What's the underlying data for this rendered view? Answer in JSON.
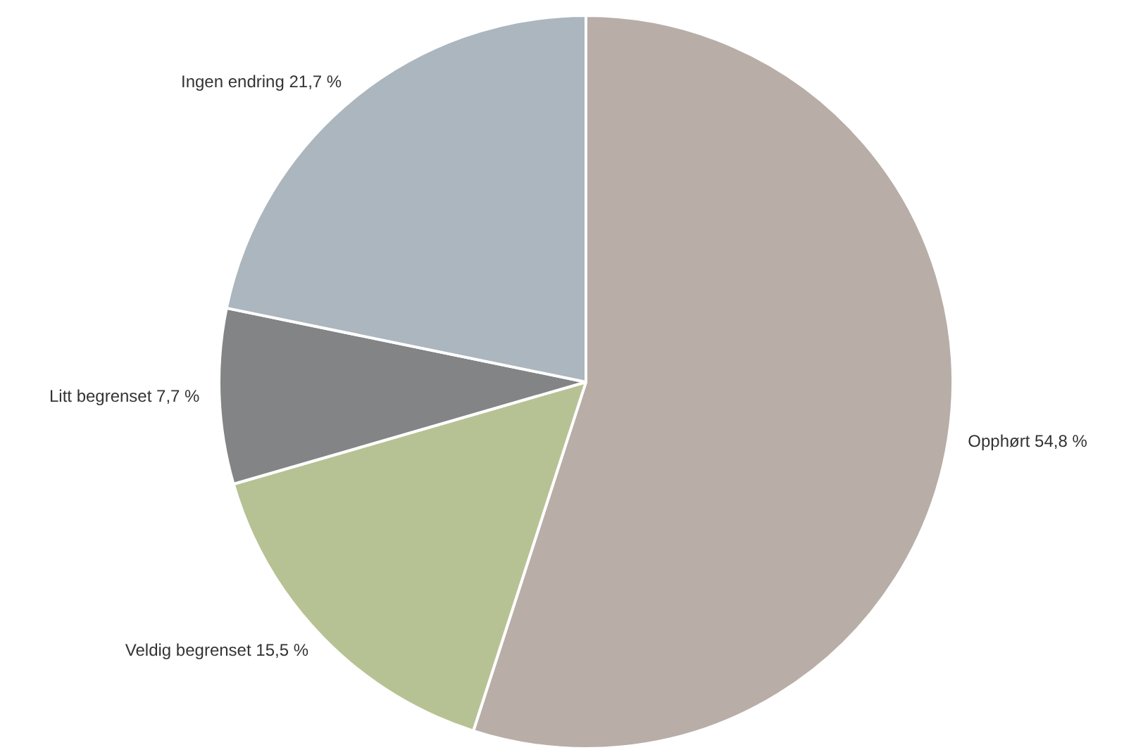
{
  "chart_data": {
    "type": "pie",
    "categories": [
      "Opphørt",
      "Veldig begrenset",
      "Litt begrenset",
      "Ingen endring"
    ],
    "values": [
      54.8,
      15.5,
      7.7,
      21.7
    ],
    "colors": [
      "#b8ada7",
      "#b7c294",
      "#838486",
      "#abb6be"
    ],
    "value_labels": [
      "54,8 %",
      "15,5 %",
      "7,7 %",
      "21,7 %"
    ],
    "legend": false
  }
}
